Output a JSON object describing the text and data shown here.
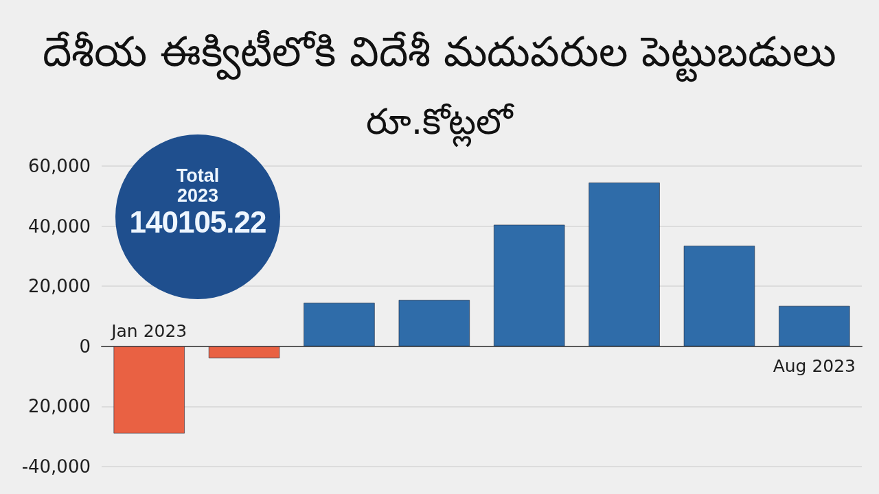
{
  "chart_data": {
    "type": "bar",
    "title": "దేశీయ ఈక్విటీలోకి విదేశీ మదుపరుల పెట్టుబడులు",
    "subtitle": "రూ.కోట్లలో",
    "categories": [
      "Jan 2023",
      null,
      null,
      null,
      null,
      null,
      null,
      "Aug 2023"
    ],
    "values": [
      -29000,
      -4000,
      14500,
      15500,
      40500,
      54500,
      33500,
      13500
    ],
    "colors": [
      "#e96143",
      "#e96143",
      "#2f6ca9",
      "#2f6ca9",
      "#2f6ca9",
      "#2f6ca9",
      "#2f6ca9",
      "#2f6ca9"
    ],
    "ylim": [
      -40000,
      60000
    ],
    "yticks": [
      {
        "value": -40000,
        "label": "-40,000"
      },
      {
        "value": -20000,
        "label": "20,000"
      },
      0,
      {
        "value": 20000,
        "label": "20,000"
      },
      {
        "value": 40000,
        "label": "40,000"
      },
      {
        "value": 60000,
        "label": "60,000"
      }
    ],
    "grid": "y",
    "annotations": [
      "Total\n2023\n140105.22"
    ]
  }
}
